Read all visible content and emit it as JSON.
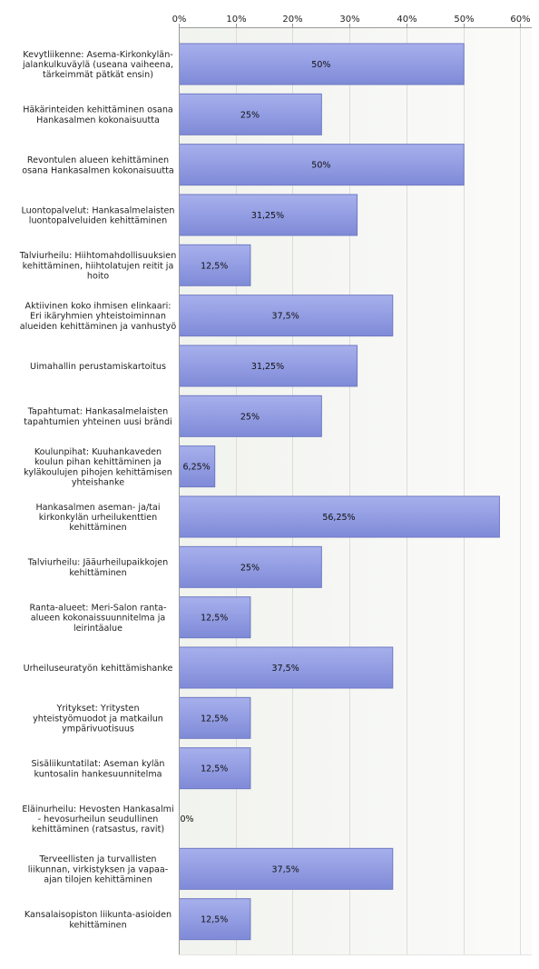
{
  "chart_data": {
    "type": "bar",
    "orientation": "horizontal",
    "categories": [
      "Kevytliikenne: Asema-Kirkonkylän-jalankulkuväylä (useana vaiheena, tärkeimmät pätkät ensin)",
      "Häkärinteiden kehittäminen osana Hankasalmen kokonaisuutta",
      "Revontulen alueen kehittäminen osana Hankasalmen kokonaisuutta",
      "Luontopalvelut: Hankasalmelaisten luontopalveluiden kehittäminen",
      "Talviurheilu: Hiihtomahdollisuuksien kehittäminen, hiihtolatujen reitit ja hoito",
      "Aktiivinen koko ihmisen elinkaari: Eri ikäryhmien yhteistoiminnan alueiden kehittäminen ja vanhustyö",
      "Uimahallin perustamiskartoitus",
      "Tapahtumat: Hankasalmelaisten tapahtumien yhteinen uusi brändi",
      "Koulunpihat: Kuuhankaveden koulun pihan kehittäminen ja kyläkoulujen pihojen kehittämisen yhteishanke",
      "Hankasalmen aseman- ja/tai kirkonkylän urheilukenttien kehittäminen",
      "Talviurheilu: Jääurheilupaikkojen kehittäminen",
      "Ranta-alueet: Meri-Salon ranta-alueen kokonaissuunnitelma ja leirintäalue",
      "Urheiluseuratyön kehittämishanke",
      "Yritykset: Yritysten yhteistyömuodot ja matkailun ympärivuotisuus",
      "Sisäliikuntatilat: Aseman kylän kuntosalin hankesuunnitelma",
      "Eläinurheilu: Hevosten Hankasalmi - hevosurheilun seudullinen kehittäminen (ratsastus, ravit)",
      "Terveellisten ja turvallisten liikunnan, virkistyksen ja vapaa-ajan tilojen kehittäminen",
      "Kansalaisopiston liikunta-asioiden kehittäminen"
    ],
    "category_lines": [
      [
        "Kevytliikenne: Asema-Kirkonkylän-",
        "jalankulkuväylä (useana vaiheena,",
        "tärkeimmät pätkät ensin)"
      ],
      [
        "Häkärinteiden kehittäminen osana",
        "Hankasalmen kokonaisuutta"
      ],
      [
        "Revontulen alueen kehittäminen",
        "osana Hankasalmen kokonaisuutta"
      ],
      [
        "Luontopalvelut: Hankasalmelaisten",
        "luontopalveluiden kehittäminen"
      ],
      [
        "Talviurheilu: Hiihtomahdollisuuksien",
        "kehittäminen, hiihtolatujen reitit ja",
        "hoito"
      ],
      [
        "Aktiivinen koko ihmisen elinkaari:",
        "Eri ikäryhmien yhteistoiminnan",
        "alueiden kehittäminen ja vanhustyö"
      ],
      [
        "Uimahallin perustamiskartoitus"
      ],
      [
        "Tapahtumat: Hankasalmelaisten",
        "tapahtumien yhteinen uusi brändi"
      ],
      [
        "Koulunpihat: Kuuhankaveden",
        "koulun pihan kehittäminen ja",
        "kyläkoulujen pihojen kehittämisen",
        "yhteishanke"
      ],
      [
        "Hankasalmen aseman- ja/tai",
        "kirkonkylän urheilukenttien",
        "kehittäminen"
      ],
      [
        "Talviurheilu: Jääurheilupaikkojen",
        "kehittäminen"
      ],
      [
        "Ranta-alueet: Meri-Salon ranta-",
        "alueen kokonaissuunnitelma ja",
        "leirintäalue"
      ],
      [
        "Urheiluseuratyön kehittämishanke"
      ],
      [
        "Yritykset: Yritysten",
        "yhteistyömuodot ja matkailun",
        "ympärivuotisuus"
      ],
      [
        "Sisäliikuntatilat: Aseman kylän",
        "kuntosalin hankesuunnitelma"
      ],
      [
        "Eläinurheilu: Hevosten Hankasalmi",
        "- hevosurheilun seudullinen",
        "kehittäminen (ratsastus, ravit)"
      ],
      [
        "Terveellisten ja turvallisten",
        "liikunnan, virkistyksen ja vapaa-",
        "ajan tilojen kehittäminen"
      ],
      [
        "Kansalaisopiston liikunta-asioiden",
        "kehittäminen"
      ]
    ],
    "values": [
      50,
      25,
      50,
      31.25,
      12.5,
      37.5,
      31.25,
      25,
      6.25,
      56.25,
      25,
      12.5,
      37.5,
      12.5,
      12.5,
      0,
      37.5,
      12.5
    ],
    "value_labels": [
      "50%",
      "25%",
      "50%",
      "31,25%",
      "12,5%",
      "37,5%",
      "31,25%",
      "25%",
      "6,25%",
      "56,25%",
      "25%",
      "12,5%",
      "37,5%",
      "12,5%",
      "12,5%",
      "0%",
      "37,5%",
      "12,5%"
    ],
    "x_ticks": [
      0,
      10,
      20,
      30,
      40,
      50,
      60
    ],
    "x_tick_labels": [
      "0%",
      "10%",
      "20%",
      "30%",
      "40%",
      "50%",
      "60%"
    ],
    "xlim": [
      0,
      62
    ],
    "x_axis_position": "top",
    "grid": true,
    "colors": {
      "bar_fill_top": "#a7b0ec",
      "bar_fill_bottom": "#7f8ad8",
      "bar_stroke": "#6f79c2",
      "plot_bg_left": "#f1f3ee",
      "plot_bg_right": "#fbfbfa",
      "grid": "#dcdcdc",
      "axis": "#9a9a9a"
    }
  }
}
